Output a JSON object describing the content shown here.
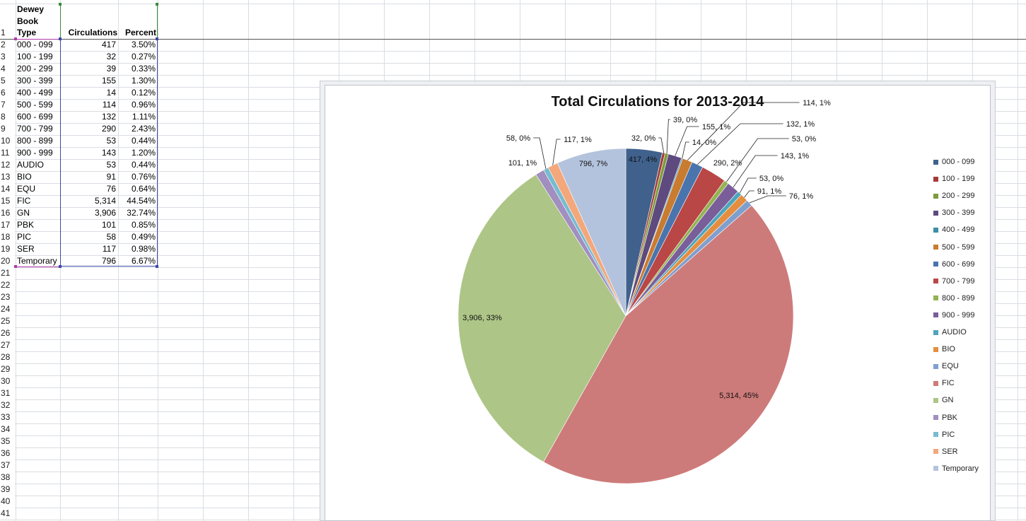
{
  "table": {
    "headers": {
      "type": "Dewey\nBook\nType",
      "type_lines": [
        "Dewey",
        "Book",
        "Type"
      ],
      "circ": "Circulations",
      "pct": "Percent"
    },
    "rows": [
      {
        "type": "000 - 099",
        "circ": "417",
        "pct": "3.50%"
      },
      {
        "type": "100 - 199",
        "circ": "32",
        "pct": "0.27%"
      },
      {
        "type": "200 - 299",
        "circ": "39",
        "pct": "0.33%"
      },
      {
        "type": "300 - 399",
        "circ": "155",
        "pct": "1.30%"
      },
      {
        "type": "400 - 499",
        "circ": "14",
        "pct": "0.12%"
      },
      {
        "type": "500 - 599",
        "circ": "114",
        "pct": "0.96%"
      },
      {
        "type": "600 - 699",
        "circ": "132",
        "pct": "1.11%"
      },
      {
        "type": "700 - 799",
        "circ": "290",
        "pct": "2.43%"
      },
      {
        "type": "800 - 899",
        "circ": "53",
        "pct": "0.44%"
      },
      {
        "type": "900 - 999",
        "circ": "143",
        "pct": "1.20%"
      },
      {
        "type": "AUDIO",
        "circ": "53",
        "pct": "0.44%"
      },
      {
        "type": "BIO",
        "circ": "91",
        "pct": "0.76%"
      },
      {
        "type": "EQU",
        "circ": "76",
        "pct": "0.64%"
      },
      {
        "type": "FIC",
        "circ": "5,314",
        "pct": "44.54%"
      },
      {
        "type": "GN",
        "circ": "3,906",
        "pct": "32.74%"
      },
      {
        "type": "PBK",
        "circ": "101",
        "pct": "0.85%"
      },
      {
        "type": "PIC",
        "circ": "58",
        "pct": "0.49%"
      },
      {
        "type": "SER",
        "circ": "117",
        "pct": "0.98%"
      },
      {
        "type": "Temporary",
        "circ": "796",
        "pct": "6.67%"
      }
    ]
  },
  "row_numbers": [
    "1",
    "2",
    "3",
    "4",
    "5",
    "6",
    "7",
    "8",
    "9",
    "10",
    "11",
    "12",
    "13",
    "14",
    "15",
    "16",
    "17",
    "18",
    "19",
    "20",
    "21",
    "22",
    "23",
    "24",
    "25",
    "26",
    "27",
    "28",
    "29",
    "30",
    "31",
    "32",
    "33",
    "34",
    "35",
    "36",
    "37",
    "38",
    "39",
    "40",
    "41"
  ],
  "chart_data": {
    "type": "pie",
    "title": "Total Circulations for 2013-2014",
    "categories": [
      "000 - 099",
      "100 - 199",
      "200 - 299",
      "300 - 399",
      "400 - 499",
      "500 - 599",
      "600 - 699",
      "700 - 799",
      "800 - 899",
      "900 - 999",
      "AUDIO",
      "BIO",
      "EQU",
      "FIC",
      "GN",
      "PBK",
      "PIC",
      "SER",
      "Temporary"
    ],
    "values": [
      417,
      32,
      39,
      155,
      14,
      114,
      132,
      290,
      53,
      143,
      53,
      91,
      76,
      5314,
      3906,
      101,
      58,
      117,
      796
    ],
    "data_labels": [
      "417, 4%",
      "32, 0%",
      "39, 0%",
      "155, 1%",
      "14, 0%",
      "114, 1%",
      "132, 1%",
      "290, 2%",
      "53, 0%",
      "143, 1%",
      "53, 0%",
      "91, 1%",
      "76, 1%",
      "5,314, 45%",
      "3,906, 33%",
      "101, 1%",
      "58, 0%",
      "117, 1%",
      "796, 7%"
    ],
    "colors": [
      "#3f618c",
      "#a33b38",
      "#7e9b3c",
      "#5e4a7e",
      "#3a8fa3",
      "#c97b30",
      "#4a74ad",
      "#b94745",
      "#93b352",
      "#7a5e9a",
      "#4ea5bb",
      "#e58e40",
      "#7f9fcf",
      "#cd7b7a",
      "#adc586",
      "#a08fbf",
      "#78bbd1",
      "#f3a77a",
      "#b4c3dd"
    ],
    "legend_position": "right"
  }
}
